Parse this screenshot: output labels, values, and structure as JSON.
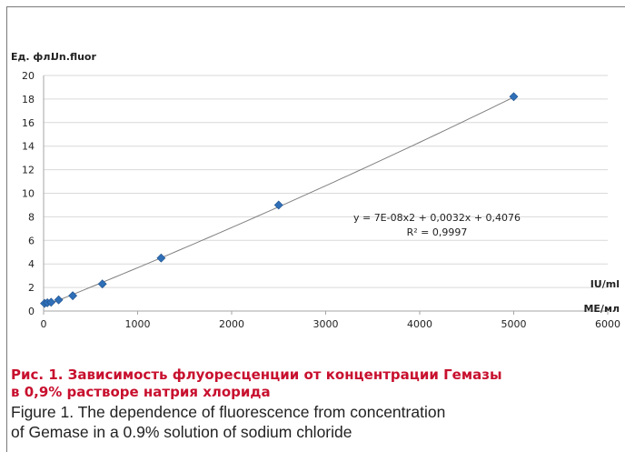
{
  "chart_data": {
    "type": "scatter",
    "ylabel_ru": "Ед. фл.",
    "ylabel_en": "Un.fluor",
    "xlabel_en": "IU/ml",
    "xlabel_ru": "МЕ/мл",
    "xlim": [
      0,
      6000
    ],
    "ylim": [
      0,
      20
    ],
    "x_ticks": [
      0,
      1000,
      2000,
      3000,
      4000,
      5000,
      6000
    ],
    "y_ticks": [
      0,
      2,
      4,
      6,
      8,
      10,
      12,
      14,
      16,
      18,
      20
    ],
    "grid": true,
    "series": [
      {
        "points": [
          {
            "x": 10,
            "y": 0.65
          },
          {
            "x": 40,
            "y": 0.7
          },
          {
            "x": 80,
            "y": 0.75
          },
          {
            "x": 160,
            "y": 0.95
          },
          {
            "x": 310,
            "y": 1.3
          },
          {
            "x": 625,
            "y": 2.3
          },
          {
            "x": 1250,
            "y": 4.5
          },
          {
            "x": 2500,
            "y": 9.0
          },
          {
            "x": 5000,
            "y": 18.2
          }
        ],
        "color": "#2e6fb7",
        "marker": "diamond"
      }
    ],
    "trendline": {
      "type": "polynomial",
      "coefficients": {
        "a": 7e-08,
        "b": 0.0032,
        "c": 0.4076
      },
      "color": "#7f7f7f"
    },
    "annotations": {
      "equation": "y = 7E-08x2 + 0,0032x + 0,4076",
      "r_squared": "R² = 0,9997"
    }
  },
  "caption": {
    "ru_line1": "Рис. 1. Зависимость флуоресценции от концентрации Гемазы",
    "ru_line2": "в 0,9% растворе натрия хлорида",
    "en_line1": "Figure 1. The dependence of fluorescence from concentration",
    "en_line2": "of Gemase in a 0.9% solution of sodium chloride"
  },
  "colors": {
    "caption_ru": "#c8102e",
    "grid": "#d9d9d9",
    "axis": "#a6a6a6"
  }
}
